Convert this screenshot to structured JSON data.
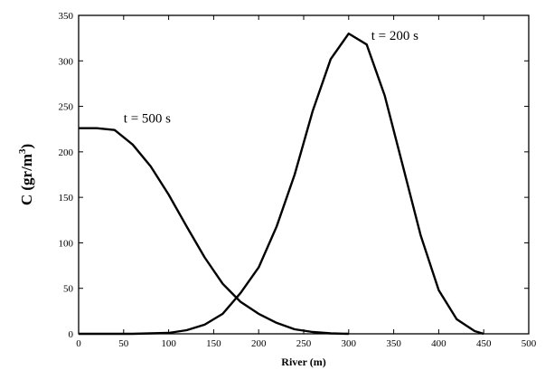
{
  "chart_data": {
    "type": "line",
    "xlabel": "River (m)",
    "ylabel": "C (gr/m",
    "ylabel_sup": "3",
    "ylabel_close": ")",
    "xlim": [
      0,
      500
    ],
    "ylim": [
      0,
      350
    ],
    "xticks": [
      0,
      50,
      100,
      150,
      200,
      250,
      300,
      350,
      400,
      450,
      500
    ],
    "yticks": [
      0,
      50,
      100,
      150,
      200,
      250,
      300,
      350
    ],
    "grid": false,
    "legend": "none",
    "series": [
      {
        "name": "t = 500 s",
        "x": [
          0,
          20,
          40,
          60,
          80,
          100,
          120,
          140,
          160,
          180,
          200,
          220,
          240,
          260,
          280,
          300
        ],
        "y": [
          226,
          226,
          224,
          208,
          184,
          153,
          118,
          84,
          55,
          35,
          22,
          12,
          5,
          2,
          0.5,
          0
        ]
      },
      {
        "name": "t = 200 s",
        "x": [
          0,
          60,
          100,
          120,
          140,
          160,
          180,
          200,
          220,
          240,
          260,
          280,
          300,
          320,
          340,
          360,
          380,
          400,
          420,
          440,
          450
        ],
        "y": [
          0,
          0,
          1,
          4,
          10,
          22,
          45,
          73,
          118,
          175,
          245,
          302,
          330,
          318,
          262,
          185,
          108,
          48,
          16,
          3,
          0
        ]
      }
    ]
  },
  "annotations": [
    {
      "label": "t = 500 s",
      "x": 50,
      "y": 232
    },
    {
      "label": "t = 200 s",
      "x": 325,
      "y": 323
    }
  ],
  "colors": {
    "line": "#000000",
    "axis": "#000000",
    "background": "#ffffff"
  }
}
